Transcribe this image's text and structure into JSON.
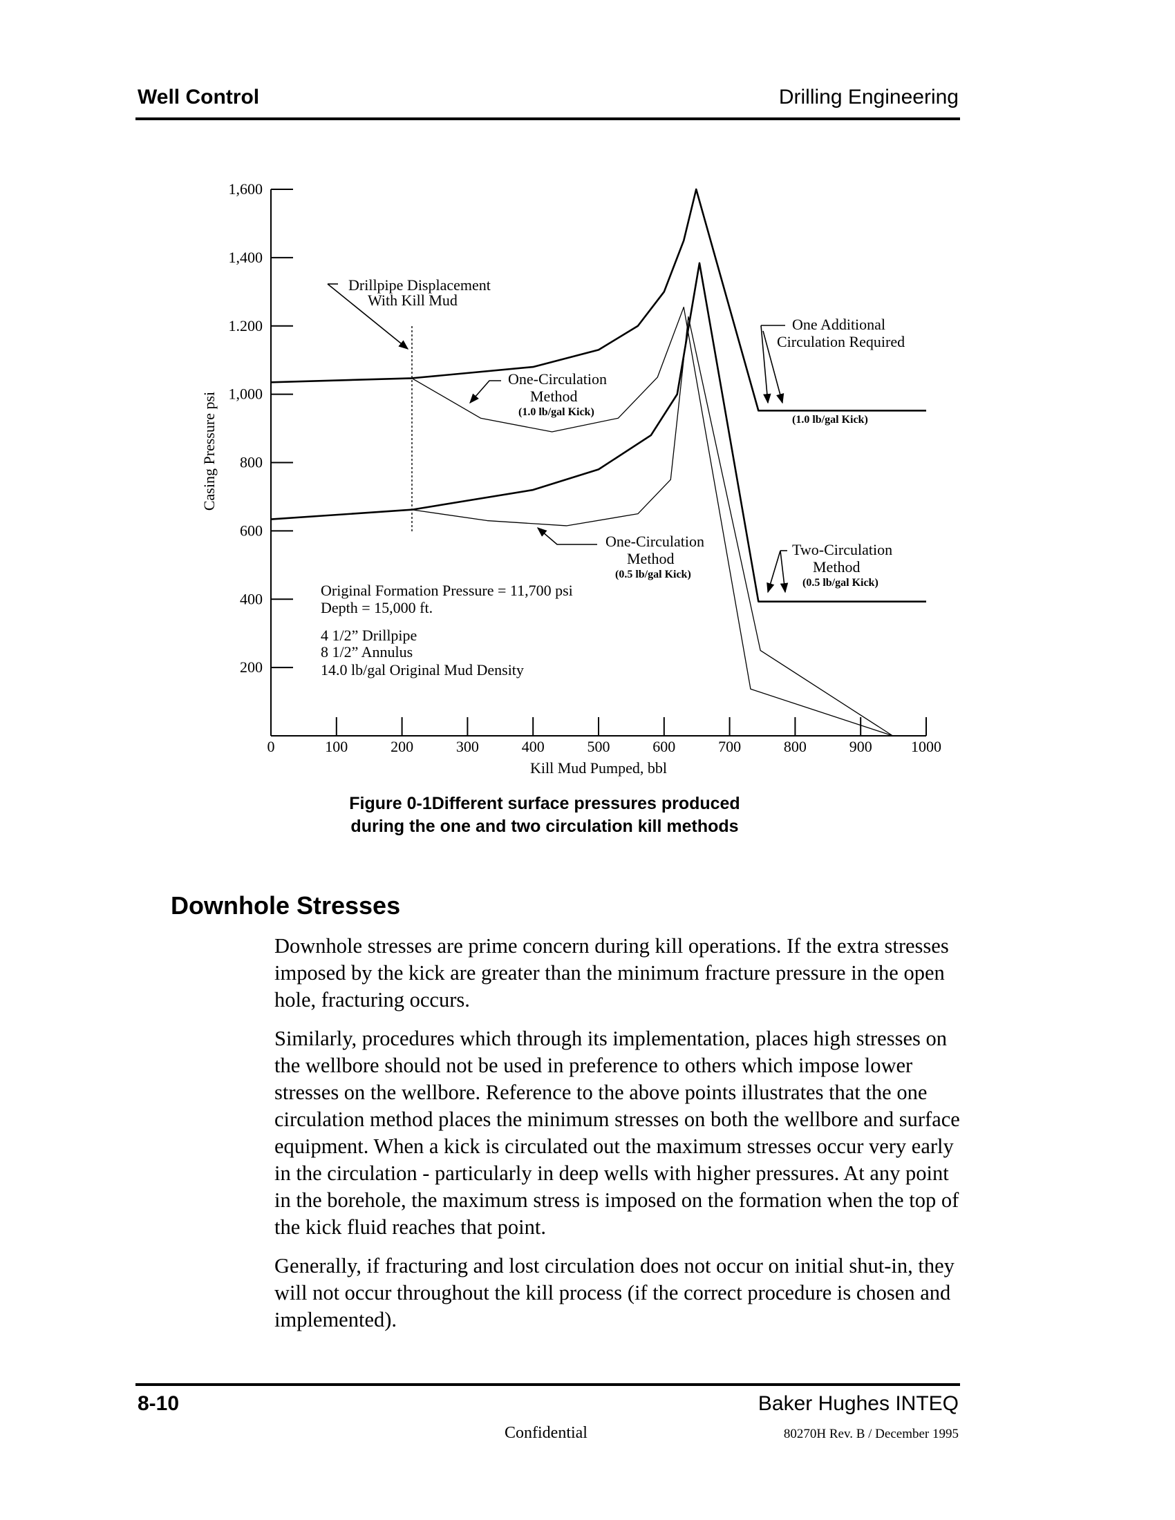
{
  "header": {
    "left": "Well Control",
    "right": "Drilling Engineering"
  },
  "chart_data": {
    "type": "line",
    "x_label": "Kill Mud Pumped, bbl",
    "y_label": "Casing Pressure psi",
    "xlim": [
      0,
      1000
    ],
    "ylim": [
      0,
      1600
    ],
    "xticks": [
      0,
      100,
      200,
      300,
      400,
      500,
      600,
      700,
      800,
      900,
      1000
    ],
    "yticks": [
      {
        "value": 200,
        "label": "200"
      },
      {
        "value": 400,
        "label": "400"
      },
      {
        "value": 600,
        "label": "600"
      },
      {
        "value": 800,
        "label": "800"
      },
      {
        "value": 1000,
        "label": "1,000"
      },
      {
        "value": 1200,
        "label": "1.200"
      },
      {
        "value": 1400,
        "label": "1,400"
      },
      {
        "value": 1600,
        "label": "1,600"
      }
    ],
    "series": [
      {
        "color": "#000000",
        "line_width": 2.6,
        "x": [
          0,
          215,
          400,
          500,
          560,
          600,
          630,
          649,
          744,
          1000
        ],
        "values": [
          1035,
          1047,
          1080,
          1130,
          1200,
          1300,
          1450,
          1600,
          952,
          952
        ]
      },
      {
        "color": "#000000",
        "line_width": 1.3,
        "x": [
          215,
          320,
          429,
          530,
          590,
          630,
          732,
          949
        ],
        "values": [
          1047,
          930,
          890,
          930,
          1050,
          1255,
          137,
          0
        ]
      },
      {
        "color": "#000000",
        "line_width": 2.6,
        "x": [
          0,
          215,
          400,
          500,
          580,
          620,
          654,
          744,
          1000
        ],
        "values": [
          634,
          662,
          720,
          780,
          880,
          1000,
          1384,
          393,
          393
        ]
      },
      {
        "color": "#000000",
        "line_width": 1.3,
        "x": [
          215,
          330,
          451,
          560,
          610,
          637,
          747,
          949
        ],
        "values": [
          662,
          630,
          615,
          650,
          750,
          1227,
          250,
          0
        ]
      }
    ],
    "annotations": [
      "Drillpipe Displacement",
      "With Kill Mud",
      "One-Circulation",
      "Method",
      "(1.0 lb/gal Kick)",
      "One Additional",
      "Circulation Required",
      "(1.0 lb/gal Kick)",
      "One-Circulation",
      "Method",
      "(0.5 lb/gal Kick)",
      "Two-Circulation",
      "Method",
      "(0.5 lb/gal Kick)",
      "Original Formation Pressure = 11,700 psi",
      "Depth = 15,000 ft.",
      "4 1/2” Drillpipe",
      "8 1/2” Annulus",
      "14.0 lb/gal Original Mud Density"
    ]
  },
  "figure_caption": [
    "Figure 0-1Different surface pressures produced",
    "during the one and two circulation kill methods"
  ],
  "section": {
    "heading": "Downhole Stresses",
    "paragraphs": [
      "Downhole stresses are prime concern during kill operations. If the extra stresses imposed by the kick are greater than the minimum fracture pressure in the open hole, fracturing occurs.",
      "Similarly, procedures which through its implementation, places high stresses on the wellbore should not be used in preference to others which impose lower stresses on the wellbore. Reference to the above points illustrates that the one circulation method places the minimum stresses on both the wellbore and surface equipment. When a kick is circulated out the maximum stresses occur very early in the circulation - particularly in deep wells with higher pressures. At any point in the borehole, the maximum stress is imposed on the formation when the top of the kick fluid reaches that point.",
      "Generally, if fracturing and lost circulation does not occur on initial shut-in, they will not occur throughout the kill process (if the correct procedure is chosen and implemented)."
    ]
  },
  "footer": {
    "page": "8-10",
    "company": "Baker Hughes INTEQ",
    "confidential": "Confidential",
    "revision": "80270H Rev. B / December 1995"
  }
}
